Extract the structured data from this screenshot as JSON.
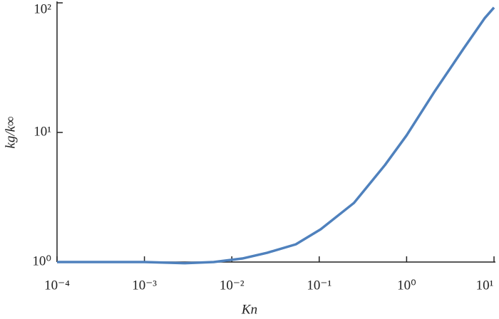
{
  "chart_data": {
    "type": "line",
    "x_label": "Kn",
    "y_label": "kg/k∞",
    "x": [
      0.0001,
      0.001,
      0.0029,
      0.0062,
      0.0132,
      0.0255,
      0.054,
      0.104,
      0.25,
      0.565,
      1.0,
      2.1,
      4.5,
      7.8,
      10
    ],
    "series": [
      {
        "color": "#4f81bd",
        "values": [
          1,
          1,
          0.98,
          1.0,
          1.065,
          1.18,
          1.37,
          1.79,
          2.86,
          5.6,
          9.5,
          20.8,
          44.5,
          76,
          92
        ]
      }
    ],
    "xlim": [
      0.0001,
      10
    ],
    "ylim": [
      1,
      100
    ],
    "xscale": "log",
    "yscale": "log",
    "xticks": [
      {
        "value": 0.0001,
        "label": "10⁻⁴"
      },
      {
        "value": 0.001,
        "label": "10⁻³"
      },
      {
        "value": 0.01,
        "label": "10⁻²"
      },
      {
        "value": 0.1,
        "label": "10⁻¹"
      },
      {
        "value": 1,
        "label": "10⁰"
      },
      {
        "value": 10,
        "label": "10¹"
      }
    ],
    "yticks": [
      {
        "value": 1,
        "label": "10⁰"
      },
      {
        "value": 10,
        "label": "10¹"
      },
      {
        "value": 100,
        "label": "10²"
      }
    ]
  }
}
